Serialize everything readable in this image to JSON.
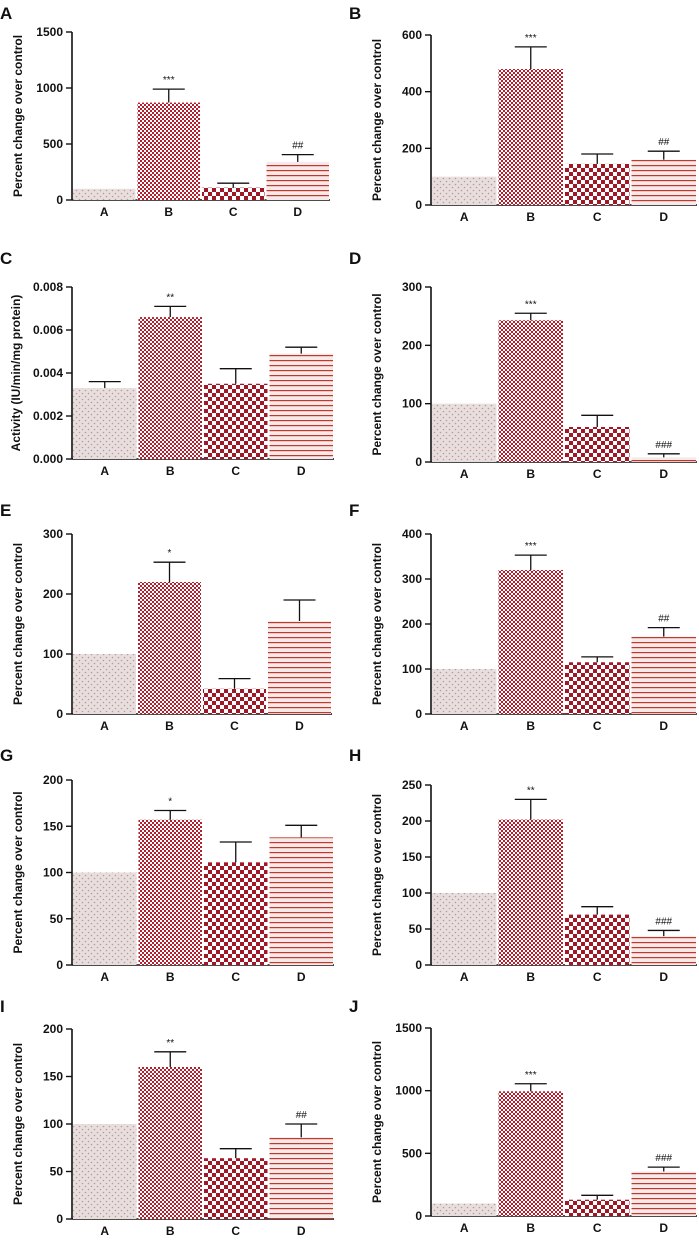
{
  "colors": {
    "dot_fill_bg": "#e9dede",
    "dot_color": "#b99a9a",
    "checker_fine": "#b41e2d",
    "checker_coarse": "#a01826",
    "stripe_color": "#c0392b",
    "stripe_bg": "#f6e9e9",
    "axis": "#111111"
  },
  "chart_data": [
    {
      "panel": "A",
      "type": "bar",
      "ylabel": "Percent change over control",
      "categories": [
        "A",
        "B",
        "C",
        "D"
      ],
      "values": [
        100,
        870,
        110,
        340
      ],
      "errors": [
        0,
        120,
        40,
        65
      ],
      "sig": [
        "",
        "***",
        "",
        "##"
      ],
      "ylim": [
        0,
        1500
      ],
      "yticks": [
        "0",
        "500",
        "1000",
        "1500"
      ],
      "ytick_values": [
        0,
        500,
        1000,
        1500
      ]
    },
    {
      "panel": "B",
      "type": "bar",
      "ylabel": "Percent change over control",
      "categories": [
        "A",
        "B",
        "C",
        "D"
      ],
      "values": [
        100,
        480,
        145,
        160
      ],
      "errors": [
        0,
        78,
        35,
        30
      ],
      "sig": [
        "",
        "***",
        "",
        "##"
      ],
      "ylim": [
        0,
        600
      ],
      "yticks": [
        "0",
        "200",
        "400",
        "600"
      ],
      "ytick_values": [
        0,
        200,
        400,
        600
      ]
    },
    {
      "panel": "C",
      "type": "bar",
      "ylabel": "Activity (IU/min/mg protein)",
      "categories": [
        "A",
        "B",
        "C",
        "D"
      ],
      "values": [
        0.0033,
        0.0066,
        0.0035,
        0.0049
      ],
      "errors": [
        0.0003,
        0.0005,
        0.0007,
        0.0003
      ],
      "sig": [
        "",
        "**",
        "",
        ""
      ],
      "ylim": [
        0,
        0.008
      ],
      "yticks": [
        "0.000",
        "0.002",
        "0.004",
        "0.006",
        "0.008"
      ],
      "ytick_values": [
        0,
        0.002,
        0.004,
        0.006,
        0.008
      ]
    },
    {
      "panel": "D",
      "type": "bar",
      "ylabel": "Percent change over control",
      "categories": [
        "A",
        "B",
        "C",
        "D"
      ],
      "values": [
        100,
        243,
        60,
        8
      ],
      "errors": [
        0,
        12,
        20,
        6
      ],
      "sig": [
        "",
        "***",
        "",
        "###"
      ],
      "ylim": [
        0,
        300
      ],
      "yticks": [
        "0",
        "100",
        "200",
        "300"
      ],
      "ytick_values": [
        0,
        100,
        200,
        300
      ]
    },
    {
      "panel": "E",
      "type": "bar",
      "ylabel": "Percent change over control",
      "categories": [
        "A",
        "B",
        "C",
        "D"
      ],
      "values": [
        100,
        220,
        42,
        155
      ],
      "errors": [
        0,
        33,
        17,
        35
      ],
      "sig": [
        "",
        "*",
        "",
        ""
      ],
      "ylim": [
        0,
        300
      ],
      "yticks": [
        "0",
        "100",
        "200",
        "300"
      ],
      "ytick_values": [
        0,
        100,
        200,
        300
      ]
    },
    {
      "panel": "F",
      "type": "bar",
      "ylabel": "Percent change over control",
      "categories": [
        "A",
        "B",
        "C",
        "D"
      ],
      "values": [
        100,
        320,
        115,
        172
      ],
      "errors": [
        0,
        33,
        12,
        20
      ],
      "sig": [
        "",
        "***",
        "",
        "##"
      ],
      "ylim": [
        0,
        400
      ],
      "yticks": [
        "0",
        "100",
        "200",
        "300",
        "400"
      ],
      "ytick_values": [
        0,
        100,
        200,
        300,
        400
      ]
    },
    {
      "panel": "G",
      "type": "bar",
      "ylabel": "Percent change over control",
      "categories": [
        "A",
        "B",
        "C",
        "D"
      ],
      "values": [
        100,
        157,
        111,
        138
      ],
      "errors": [
        0,
        10,
        22,
        13
      ],
      "sig": [
        "",
        "*",
        "",
        ""
      ],
      "ylim": [
        0,
        200
      ],
      "yticks": [
        "0",
        "50",
        "100",
        "150",
        "200"
      ],
      "ytick_values": [
        0,
        50,
        100,
        150,
        200
      ]
    },
    {
      "panel": "H",
      "type": "bar",
      "ylabel": "Percent change over control",
      "categories": [
        "A",
        "B",
        "C",
        "D"
      ],
      "values": [
        100,
        202,
        70,
        40
      ],
      "errors": [
        0,
        28,
        11,
        8
      ],
      "sig": [
        "",
        "**",
        "",
        "###"
      ],
      "ylim": [
        0,
        250
      ],
      "yticks": [
        "0",
        "50",
        "100",
        "150",
        "200",
        "250"
      ],
      "ytick_values": [
        0,
        50,
        100,
        150,
        200,
        250
      ]
    },
    {
      "panel": "I",
      "type": "bar",
      "ylabel": "Percent change over control",
      "categories": [
        "A",
        "B",
        "C",
        "D"
      ],
      "values": [
        100,
        160,
        64,
        86
      ],
      "errors": [
        0,
        16,
        10,
        14
      ],
      "sig": [
        "",
        "**",
        "",
        "##"
      ],
      "ylim": [
        0,
        200
      ],
      "yticks": [
        "0",
        "50",
        "100",
        "150",
        "200"
      ],
      "ytick_values": [
        0,
        50,
        100,
        150,
        200
      ]
    },
    {
      "panel": "J",
      "type": "bar",
      "ylabel": "Percent change over control",
      "categories": [
        "A",
        "B",
        "C",
        "D"
      ],
      "values": [
        100,
        995,
        130,
        355
      ],
      "errors": [
        0,
        60,
        35,
        35
      ],
      "sig": [
        "",
        "***",
        "",
        "###"
      ],
      "ylim": [
        0,
        1500
      ],
      "yticks": [
        "0",
        "500",
        "1000",
        "1500"
      ],
      "ytick_values": [
        0,
        500,
        1000,
        1500
      ]
    }
  ]
}
